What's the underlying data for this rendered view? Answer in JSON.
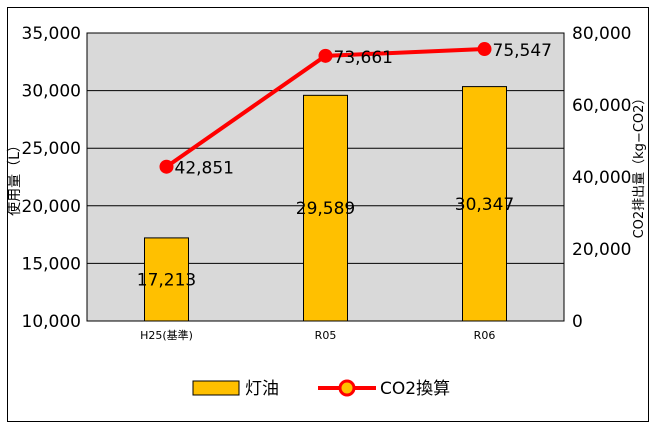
{
  "chart_data": {
    "type": "bar+line",
    "categories": [
      "H25(基準)",
      "R05",
      "R06"
    ],
    "series": [
      {
        "name": "灯油",
        "type": "bar",
        "axis": "left",
        "values": [
          17213,
          29589,
          30347
        ],
        "labels": [
          "17,213",
          "29,589",
          "30,347"
        ],
        "color": "#ffc000"
      },
      {
        "name": "CO2換算",
        "type": "line",
        "axis": "right",
        "values": [
          42851,
          73661,
          75547
        ],
        "labels": [
          "42,851",
          "73,661",
          "75,547"
        ],
        "color": "#ff0000"
      }
    ],
    "y_left": {
      "label": "使用量（L）",
      "lim": [
        10000,
        35000
      ],
      "ticks": [
        10000,
        15000,
        20000,
        25000,
        30000,
        35000
      ],
      "tick_labels": [
        "10,000",
        "15,000",
        "20,000",
        "25,000",
        "30,000",
        "35,000"
      ]
    },
    "y_right": {
      "label": "CO2排出量（kg−CO2）",
      "lim": [
        0,
        80000
      ],
      "ticks": [
        0,
        20000,
        40000,
        60000,
        80000
      ],
      "tick_labels": [
        "0",
        "20,000",
        "40,000",
        "60,000",
        "80,000"
      ]
    },
    "grid": true,
    "plot_background": "#d9d9d9",
    "legend_position": "bottom"
  }
}
